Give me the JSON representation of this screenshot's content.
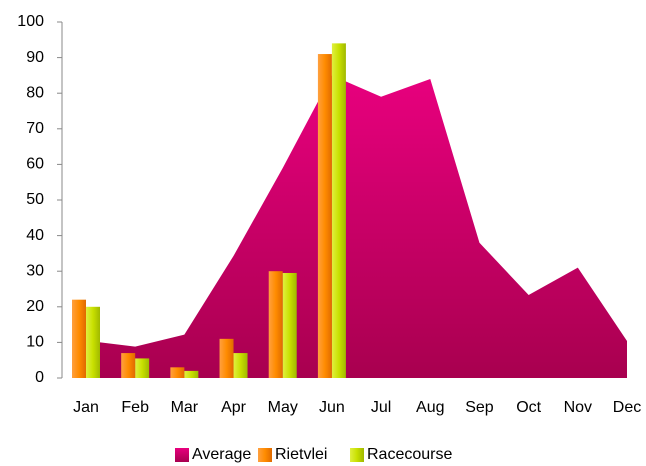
{
  "chart_data": {
    "type": "area_bar",
    "categories": [
      "Jan",
      "Feb",
      "Mar",
      "Apr",
      "May",
      "Jun",
      "Jul",
      "Aug",
      "Sep",
      "Oct",
      "Nov",
      "Dec"
    ],
    "series": [
      {
        "name": "Average",
        "type": "area",
        "color": "#c8006a",
        "values": [
          10.5,
          8.8,
          12.2,
          34.3,
          59,
          85,
          79,
          84,
          38,
          23.3,
          31,
          10.4
        ]
      },
      {
        "name": "Rietvlei",
        "type": "bar",
        "color": "#ff8c00",
        "values": [
          22,
          7,
          3,
          11,
          30,
          91,
          null,
          null,
          null,
          null,
          null,
          null
        ]
      },
      {
        "name": "Racecourse",
        "type": "bar",
        "color": "#c8e000",
        "values": [
          20,
          5.5,
          2,
          7,
          29.5,
          94,
          null,
          null,
          null,
          null,
          null,
          null
        ]
      }
    ],
    "ylim": [
      0,
      100
    ],
    "yticks": [
      0,
      10,
      20,
      30,
      40,
      50,
      60,
      70,
      80,
      90,
      100
    ],
    "legend": "bottom"
  }
}
